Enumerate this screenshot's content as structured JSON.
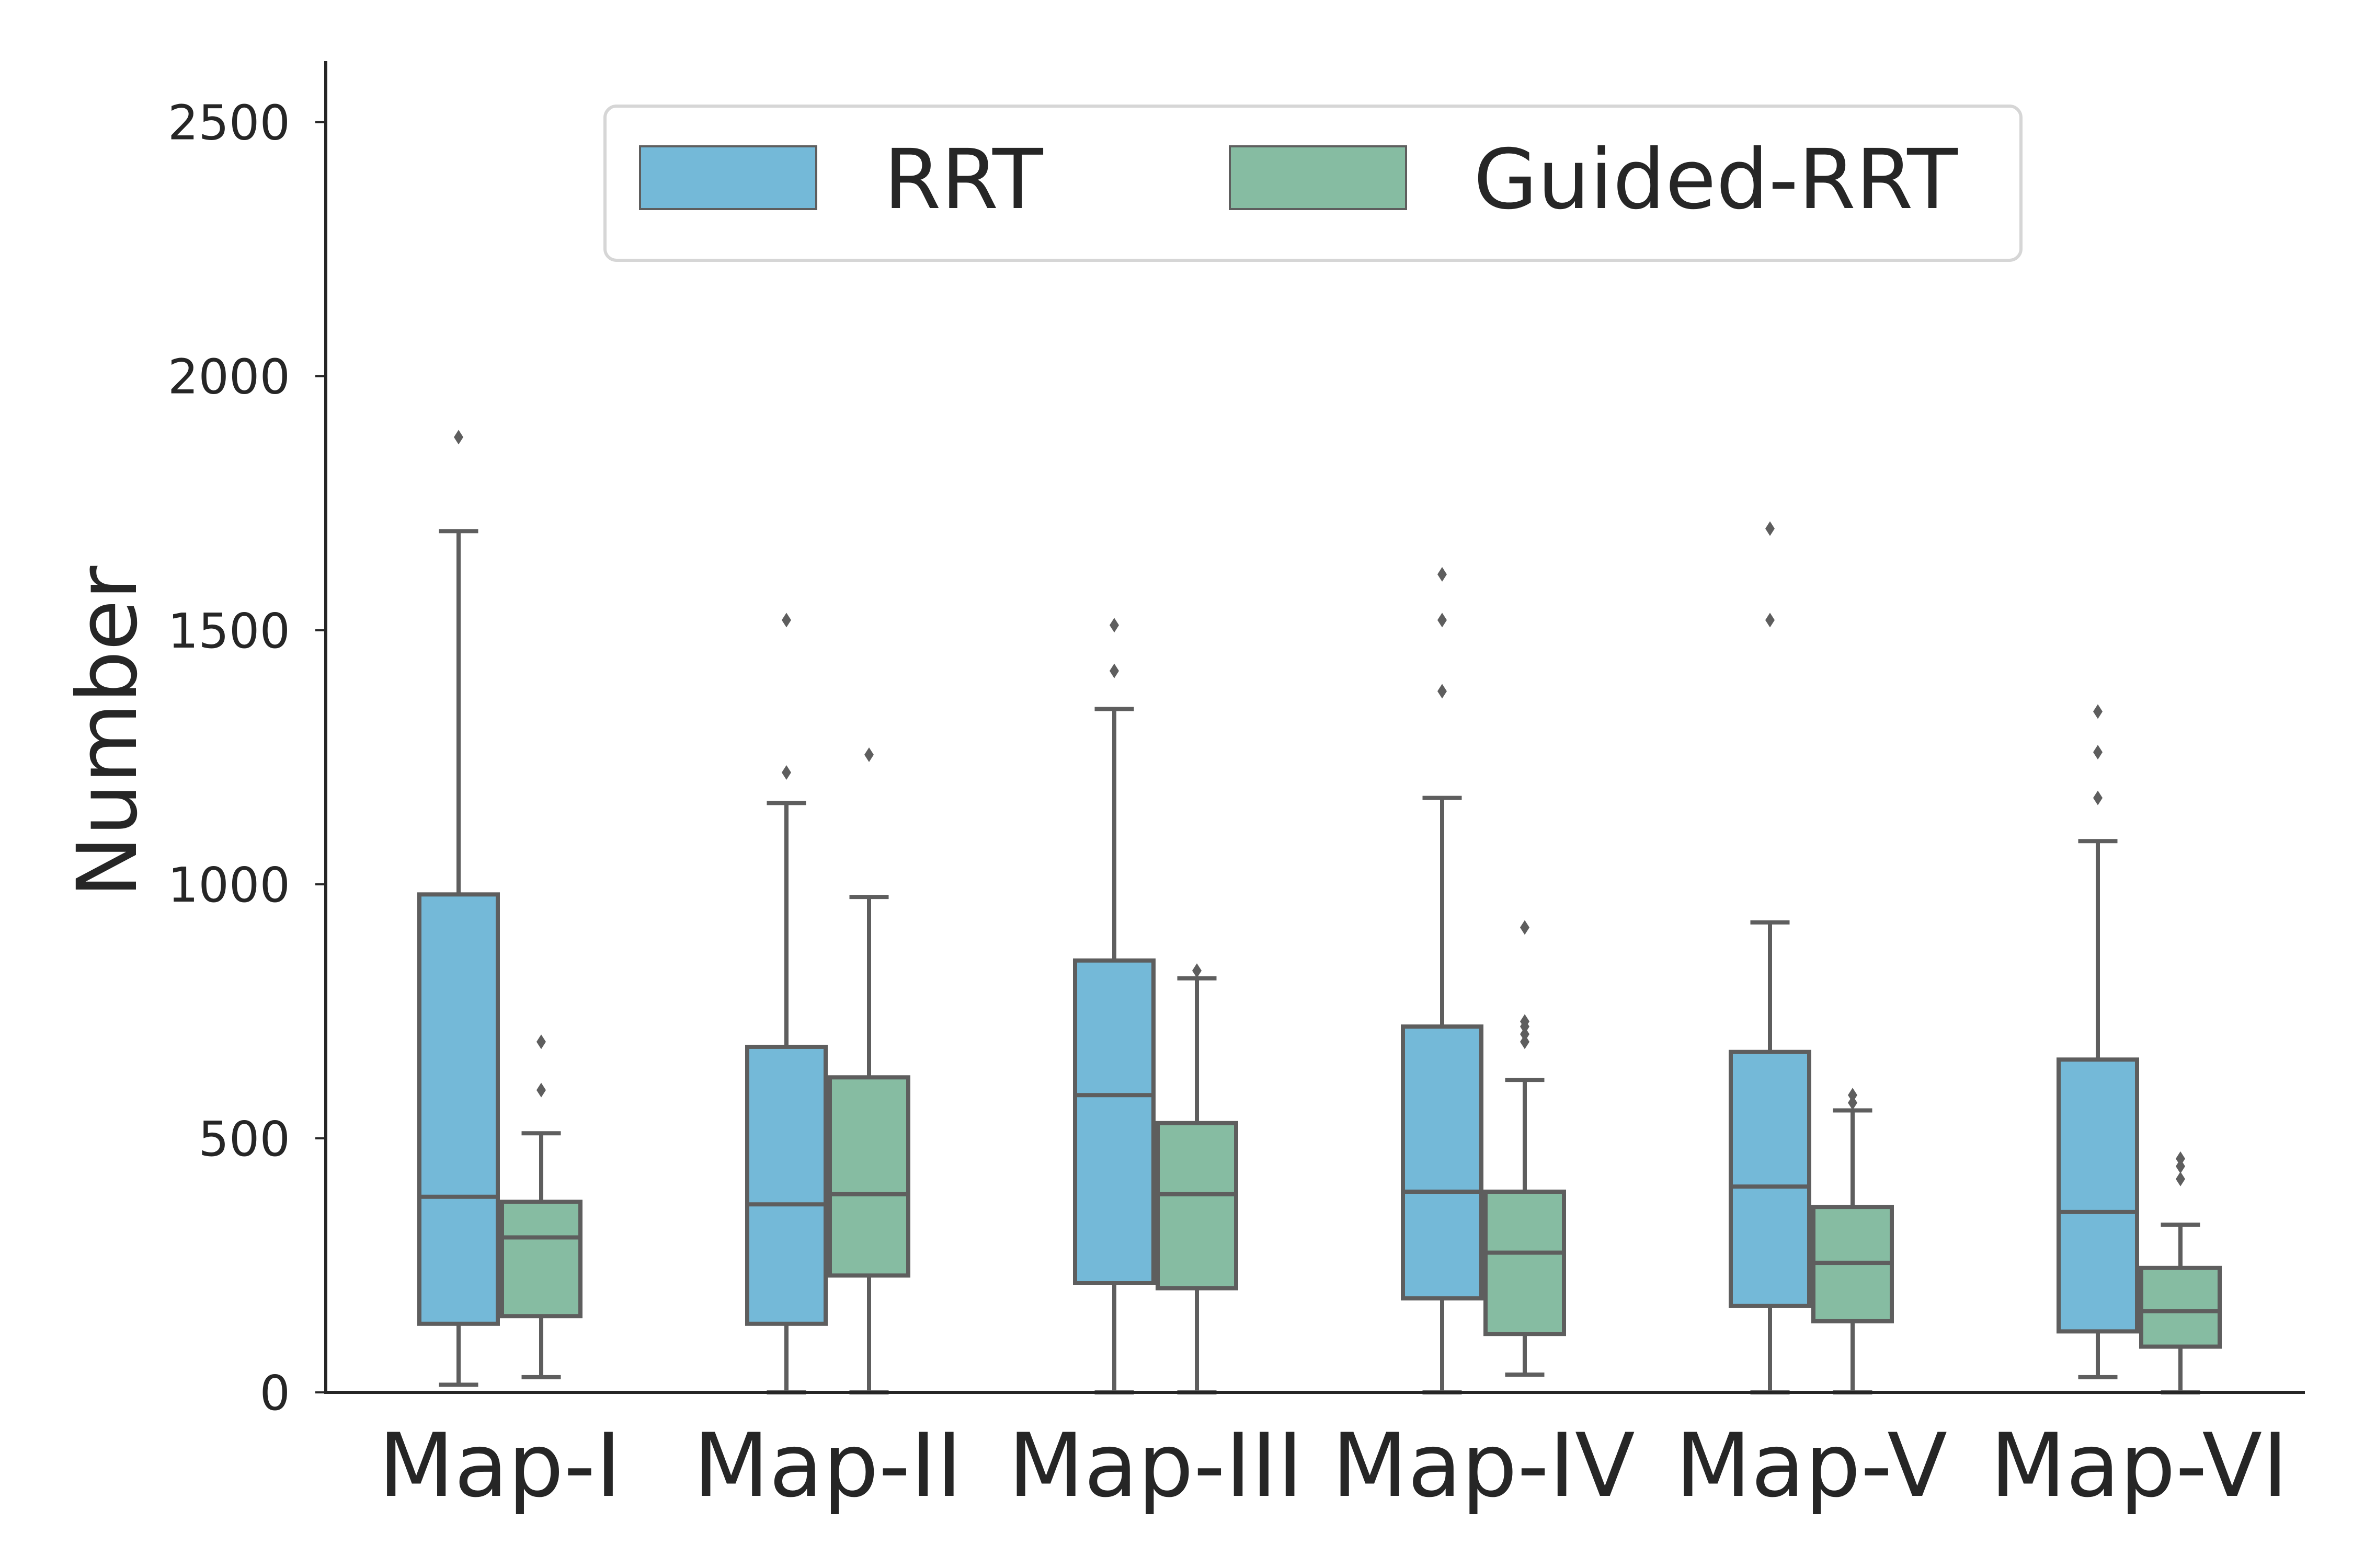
{
  "chart_data": {
    "type": "boxplot",
    "title": "",
    "xlabel": "",
    "ylabel": "Number",
    "ylim": [
      0,
      2620
    ],
    "yticks": [
      0,
      500,
      1000,
      1500,
      2000,
      2500
    ],
    "grid": false,
    "legend_position": "top-center",
    "categories": [
      "Map-I",
      "Map-II",
      "Map-III",
      "Map-IV",
      "Map-V",
      "Map-VI"
    ],
    "series": [
      {
        "name": "RRT",
        "color": "#74b9d8",
        "boxes": [
          {
            "whislo": 15,
            "q1": 135,
            "med": 385,
            "q3": 980,
            "whishi": 1695,
            "fliers": [
              1880
            ]
          },
          {
            "whislo": 0,
            "q1": 135,
            "med": 370,
            "q3": 680,
            "whishi": 1160,
            "fliers": [
              1220,
              1520
            ]
          },
          {
            "whislo": 0,
            "q1": 215,
            "med": 585,
            "q3": 850,
            "whishi": 1345,
            "fliers": [
              1420,
              1510
            ]
          },
          {
            "whislo": 0,
            "q1": 185,
            "med": 395,
            "q3": 720,
            "whishi": 1170,
            "fliers": [
              1380,
              1520,
              1610
            ]
          },
          {
            "whislo": 0,
            "q1": 170,
            "med": 405,
            "q3": 670,
            "whishi": 925,
            "fliers": [
              1520,
              1700
            ]
          },
          {
            "whislo": 30,
            "q1": 120,
            "med": 355,
            "q3": 655,
            "whishi": 1085,
            "fliers": [
              1170,
              1260,
              1340
            ]
          }
        ]
      },
      {
        "name": "Guided-RRT",
        "color": "#86bca2",
        "boxes": [
          {
            "whislo": 30,
            "q1": 150,
            "med": 305,
            "q3": 375,
            "whishi": 510,
            "fliers": [
              595,
              690
            ]
          },
          {
            "whislo": 0,
            "q1": 230,
            "med": 390,
            "q3": 620,
            "whishi": 975,
            "fliers": [
              1255
            ]
          },
          {
            "whislo": 0,
            "q1": 205,
            "med": 390,
            "q3": 530,
            "whishi": 815,
            "fliers": [
              830
            ]
          },
          {
            "whislo": 35,
            "q1": 115,
            "med": 275,
            "q3": 395,
            "whishi": 615,
            "fliers": [
              690,
              705,
              720,
              730,
              915
            ]
          },
          {
            "whislo": 0,
            "q1": 140,
            "med": 255,
            "q3": 365,
            "whishi": 555,
            "fliers": [
              570,
              585
            ]
          },
          {
            "whislo": 0,
            "q1": 90,
            "med": 160,
            "q3": 245,
            "whishi": 330,
            "fliers": [
              420,
              445,
              460
            ]
          }
        ]
      }
    ]
  }
}
